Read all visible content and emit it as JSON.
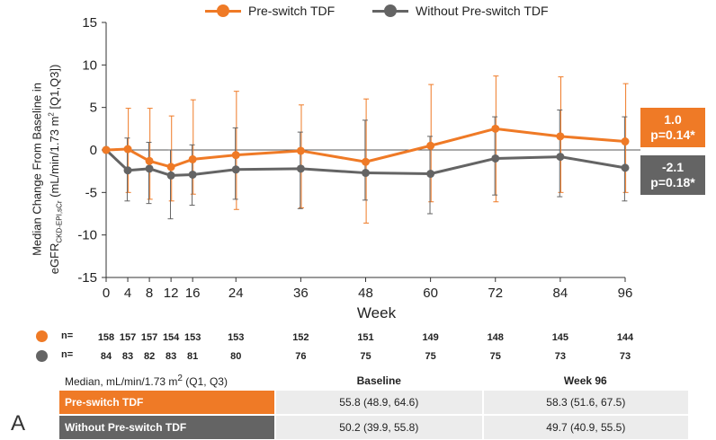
{
  "legend": {
    "series1": "Pre-switch TDF",
    "series2": "Without Pre-switch TDF"
  },
  "colors": {
    "orange": "#ef7a26",
    "gray": "#646464"
  },
  "y_label_main": "Median Change From Baseline in",
  "y_label_egfr": "eGFR",
  "y_label_sub": "CKD-EPI,sCr",
  "y_label_units": " (mL/min/1.73 m",
  "y_label_sup": "2",
  "y_label_end": " [Q1,Q3])",
  "callouts": {
    "pre_value": "1.0",
    "pre_p": "p=0.14*",
    "wo_value": "-2.1",
    "wo_p": "p=0.18*"
  },
  "n_label": "n=",
  "table": {
    "header_first": "Median, mL/min/1.73 m",
    "header_sup": "2",
    "header_rest": " (Q1, Q3)",
    "col_baseline": "Baseline",
    "col_week96": "Week 96",
    "rows": [
      {
        "label": "Pre-switch TDF",
        "baseline": "55.8 (48.9, 64.6)",
        "week96": "58.3 (51.6, 67.5)"
      },
      {
        "label": "Without Pre-switch TDF",
        "baseline": "50.2 (39.9, 55.8)",
        "week96": "49.7 (40.9, 55.5)"
      }
    ]
  },
  "panel_label": "A",
  "chart_data": {
    "type": "line",
    "title": "",
    "xlabel": "Week",
    "ylabel": "Median Change From Baseline in eGFR CKD-EPI,sCr (mL/min/1.73 m2 [Q1,Q3])",
    "x": [
      0,
      4,
      8,
      12,
      16,
      24,
      36,
      48,
      60,
      72,
      84,
      96
    ],
    "xlim": [
      0,
      96
    ],
    "ylim": [
      -15,
      15
    ],
    "yticks": [
      15,
      10,
      5,
      0,
      -5,
      -10,
      -15
    ],
    "reference_line": 0,
    "legend_position": "top",
    "series": [
      {
        "name": "Pre-switch TDF",
        "color": "#ef7a26",
        "values": [
          0,
          0.1,
          -1.3,
          -2.0,
          -1.1,
          -0.6,
          -0.1,
          -1.4,
          0.5,
          2.5,
          1.6,
          1.0
        ],
        "q1": [
          0,
          -5.0,
          -5.8,
          -6.0,
          -5.2,
          -7.0,
          -6.8,
          -8.6,
          -6.1,
          -6.1,
          -5.0,
          -5.0
        ],
        "q3": [
          0,
          4.9,
          4.9,
          4.0,
          5.9,
          6.9,
          5.3,
          6.0,
          7.7,
          8.7,
          8.6,
          7.8
        ],
        "n": [
          158,
          157,
          157,
          154,
          153,
          153,
          152,
          151,
          149,
          148,
          145,
          144
        ]
      },
      {
        "name": "Without Pre-switch TDF",
        "color": "#646464",
        "values": [
          0,
          -2.4,
          -2.2,
          -3.0,
          -2.9,
          -2.3,
          -2.2,
          -2.7,
          -2.8,
          -1.0,
          -0.8,
          -2.1
        ],
        "q1": [
          0,
          -6.0,
          -6.3,
          -8.1,
          -6.5,
          -5.8,
          -6.9,
          -5.9,
          -7.5,
          -5.3,
          -5.5,
          -6.0
        ],
        "q3": [
          0,
          1.4,
          0.9,
          0.0,
          0.6,
          2.6,
          2.1,
          3.5,
          1.6,
          3.9,
          4.7,
          3.9
        ],
        "n": [
          84,
          83,
          82,
          83,
          81,
          80,
          76,
          75,
          75,
          75,
          73,
          73
        ]
      }
    ]
  }
}
